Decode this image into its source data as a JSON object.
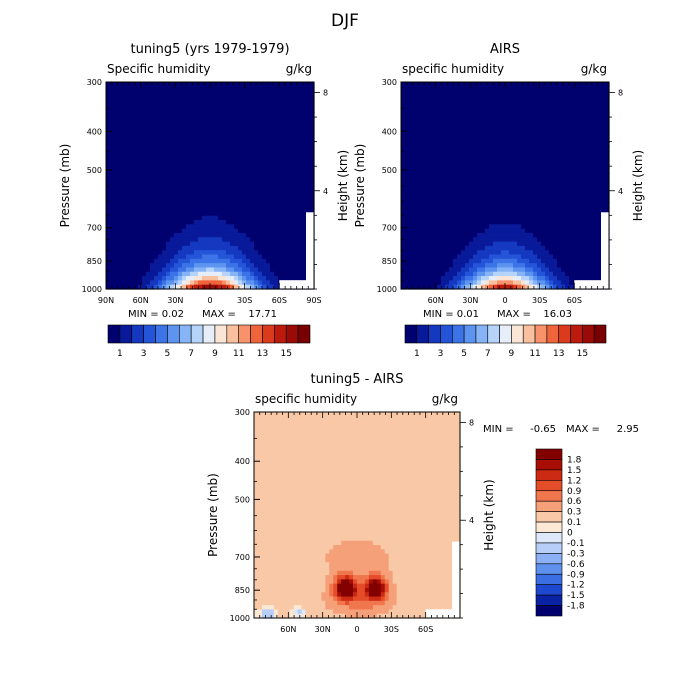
{
  "figure": {
    "title": "DJF"
  },
  "palettes": {
    "absolute": [
      "#00006e",
      "#08199a",
      "#1438c0",
      "#2455d8",
      "#3c74e8",
      "#5c94f0",
      "#86b4f6",
      "#b6d4fa",
      "#e6eefa",
      "#fae6d6",
      "#f9c0a0",
      "#f7926a",
      "#f0643c",
      "#dc3a1c",
      "#bc1a0c",
      "#9a0a06",
      "#780002"
    ],
    "difference": [
      "#00006e",
      "#0a22a6",
      "#1e48d0",
      "#3a6ee2",
      "#5e90ee",
      "#8cb0f4",
      "#b6cef8",
      "#dde8fa",
      "#fce8d4",
      "#f9c8a6",
      "#f6a07a",
      "#f0764e",
      "#e44c2a",
      "#cc2a12",
      "#a80e06",
      "#820000"
    ]
  },
  "chart_data": [
    {
      "type": "heatmap",
      "title": "tuning5 (yrs 1979-1979)",
      "subtitle_left": "Specific humidity",
      "subtitle_right": "g/kg",
      "ylabel": "Pressure (mb)",
      "ylabel_right": "Height (km)",
      "x_ticks": [
        "90N",
        "60N",
        "30N",
        "0",
        "30S",
        "60S",
        "90S"
      ],
      "x_ticks_values": [
        90,
        60,
        30,
        0,
        -30,
        -60,
        -90
      ],
      "xlim": [
        90,
        -90
      ],
      "y_ticks": [
        "300",
        "400",
        "500",
        "700",
        "850",
        "1000"
      ],
      "y_ticks_values": [
        300,
        400,
        500,
        700,
        850,
        1000
      ],
      "ylim": [
        300,
        1000
      ],
      "y_right_ticks": [
        "8",
        "4"
      ],
      "y_right_ticks_values": [
        8,
        4
      ],
      "stats": {
        "min_label": "MIN =",
        "min": "0.02",
        "max_label": "MAX =",
        "max": "17.71"
      },
      "model": {
        "surface": 17.2,
        "lat_center": 0,
        "lat_width": 38,
        "scale_height": 120
      },
      "levels": [
        1,
        2,
        3,
        4,
        5,
        6,
        7,
        8,
        9,
        10,
        11,
        12,
        13,
        14,
        15,
        16
      ],
      "colorbar": {
        "orientation": "horizontal",
        "labels": [
          "1",
          "3",
          "5",
          "7",
          "9",
          "11",
          "13",
          "15"
        ]
      }
    },
    {
      "type": "heatmap",
      "title": "AIRS",
      "subtitle_left": "specific humidity",
      "subtitle_right": "g/kg",
      "ylabel": "Pressure (mb)",
      "ylabel_right": "Height (km)",
      "x_ticks": [
        "60N",
        "30N",
        "0",
        "30S",
        "60S"
      ],
      "x_ticks_values": [
        60,
        30,
        0,
        -30,
        -60
      ],
      "xlim": [
        90,
        -90
      ],
      "y_ticks": [
        "300",
        "400",
        "500",
        "700",
        "850",
        "1000"
      ],
      "y_ticks_values": [
        300,
        400,
        500,
        700,
        850,
        1000
      ],
      "ylim": [
        300,
        1000
      ],
      "y_right_ticks": [
        "8",
        "4"
      ],
      "y_right_ticks_values": [
        8,
        4
      ],
      "stats": {
        "min_label": "MIN =",
        "min": "0.01",
        "max_label": "MAX =",
        "max": "16.03"
      },
      "model": {
        "surface": 16.0,
        "lat_center": 0,
        "lat_width": 36,
        "scale_height": 115
      },
      "levels": [
        1,
        2,
        3,
        4,
        5,
        6,
        7,
        8,
        9,
        10,
        11,
        12,
        13,
        14,
        15,
        16
      ],
      "colorbar": {
        "orientation": "horizontal",
        "labels": [
          "1",
          "3",
          "5",
          "7",
          "9",
          "11",
          "13",
          "15"
        ]
      }
    },
    {
      "type": "heatmap",
      "title": "tuning5 - AIRS",
      "subtitle_left": "specific humidity",
      "subtitle_right": "g/kg",
      "ylabel": "Pressure (mb)",
      "ylabel_right": "Height (km)",
      "x_ticks": [
        "60N",
        "30N",
        "0",
        "30S",
        "60S"
      ],
      "x_ticks_values": [
        60,
        30,
        0,
        -30,
        -60
      ],
      "xlim": [
        90,
        -90
      ],
      "y_ticks": [
        "300",
        "400",
        "500",
        "700",
        "850",
        "1000"
      ],
      "y_ticks_values": [
        300,
        400,
        500,
        700,
        850,
        1000
      ],
      "ylim": [
        300,
        1000
      ],
      "y_right_ticks": [
        "8",
        "4"
      ],
      "y_right_ticks_values": [
        8,
        4
      ],
      "stats": {
        "min_label": "MIN =",
        "min": "-0.65",
        "max_label": "MAX =",
        "max": "2.95"
      },
      "levels": [
        -1.8,
        -1.5,
        -1.2,
        -0.9,
        -0.6,
        -0.3,
        -0.1,
        0,
        0.1,
        0.3,
        0.6,
        0.9,
        1.2,
        1.5,
        1.8
      ],
      "colorbar": {
        "orientation": "vertical",
        "labels": [
          "1.8",
          "1.5",
          "1.2",
          "0.9",
          "0.6",
          "0.3",
          "0.1",
          "0",
          "-0.1",
          "-0.3",
          "-0.6",
          "-0.9",
          "-1.2",
          "-1.5",
          "-1.8"
        ]
      }
    }
  ]
}
